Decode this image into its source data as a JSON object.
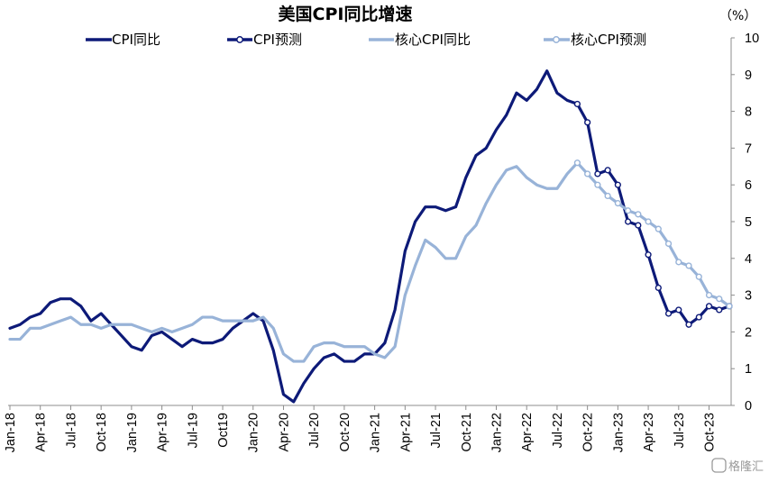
{
  "chart_data": {
    "type": "line",
    "title": "美国CPI同比增速",
    "unit": "（%）",
    "ylim": [
      0,
      10
    ],
    "yticks": [
      "0",
      "1",
      "2",
      "3",
      "4",
      "5",
      "6",
      "7",
      "8",
      "9",
      "10"
    ],
    "x_tick_labels": [
      "Jan-18",
      "Apr-18",
      "Jul-18",
      "Oct-18",
      "Jan-19",
      "Apr-19",
      "Jul-19",
      "Oct19",
      "Jan-20",
      "Apr-20",
      "Jul-20",
      "Oct-20",
      "Jan-21",
      "Apr-21",
      "Jul-21",
      "Oct-21",
      "Jan-22",
      "Apr-22",
      "Jul-22",
      "Oct-22",
      "Jan-23",
      "Apr-23",
      "Jul-23",
      "Oct-23"
    ],
    "x_start": "2018-01",
    "grid": false,
    "legend_position": "top",
    "series": [
      {
        "name": "CPI同比",
        "color": "#0d1a78",
        "marker": "none",
        "values": [
          2.1,
          2.2,
          2.4,
          2.5,
          2.8,
          2.9,
          2.9,
          2.7,
          2.3,
          2.5,
          2.2,
          1.9,
          1.6,
          1.5,
          1.9,
          2.0,
          1.8,
          1.6,
          1.8,
          1.7,
          1.7,
          1.8,
          2.1,
          2.3,
          2.5,
          2.3,
          1.5,
          0.3,
          0.1,
          0.6,
          1.0,
          1.3,
          1.4,
          1.2,
          1.2,
          1.4,
          1.4,
          1.7,
          2.6,
          4.2,
          5.0,
          5.4,
          5.4,
          5.3,
          5.4,
          6.2,
          6.8,
          7.0,
          7.5,
          7.9,
          8.5,
          8.3,
          8.6,
          9.1,
          8.5,
          8.3,
          8.2
        ]
      },
      {
        "name": "CPI预测",
        "color": "#0d1a78",
        "marker": "open-circle",
        "start_index": 56,
        "values": [
          8.2,
          7.7,
          6.3,
          6.4,
          6.0,
          5.0,
          4.9,
          4.1,
          3.2,
          2.5,
          2.6,
          2.2,
          2.4,
          2.7,
          2.6,
          2.7
        ]
      },
      {
        "name": "核心CPI同比",
        "color": "#98b3d8",
        "marker": "none",
        "values": [
          1.8,
          1.8,
          2.1,
          2.1,
          2.2,
          2.3,
          2.4,
          2.2,
          2.2,
          2.1,
          2.2,
          2.2,
          2.2,
          2.1,
          2.0,
          2.1,
          2.0,
          2.1,
          2.2,
          2.4,
          2.4,
          2.3,
          2.3,
          2.3,
          2.3,
          2.4,
          2.1,
          1.4,
          1.2,
          1.2,
          1.6,
          1.7,
          1.7,
          1.6,
          1.6,
          1.6,
          1.4,
          1.3,
          1.6,
          3.0,
          3.8,
          4.5,
          4.3,
          4.0,
          4.0,
          4.6,
          4.9,
          5.5,
          6.0,
          6.4,
          6.5,
          6.2,
          6.0,
          5.9,
          5.9,
          6.3,
          6.6
        ]
      },
      {
        "name": "核心CPI预测",
        "color": "#98b3d8",
        "marker": "open-circle",
        "start_index": 56,
        "values": [
          6.6,
          6.3,
          6.0,
          5.7,
          5.5,
          5.3,
          5.2,
          5.0,
          4.8,
          4.4,
          3.9,
          3.8,
          3.5,
          3.0,
          2.9,
          2.7
        ]
      }
    ]
  },
  "watermark": "格隆汇"
}
